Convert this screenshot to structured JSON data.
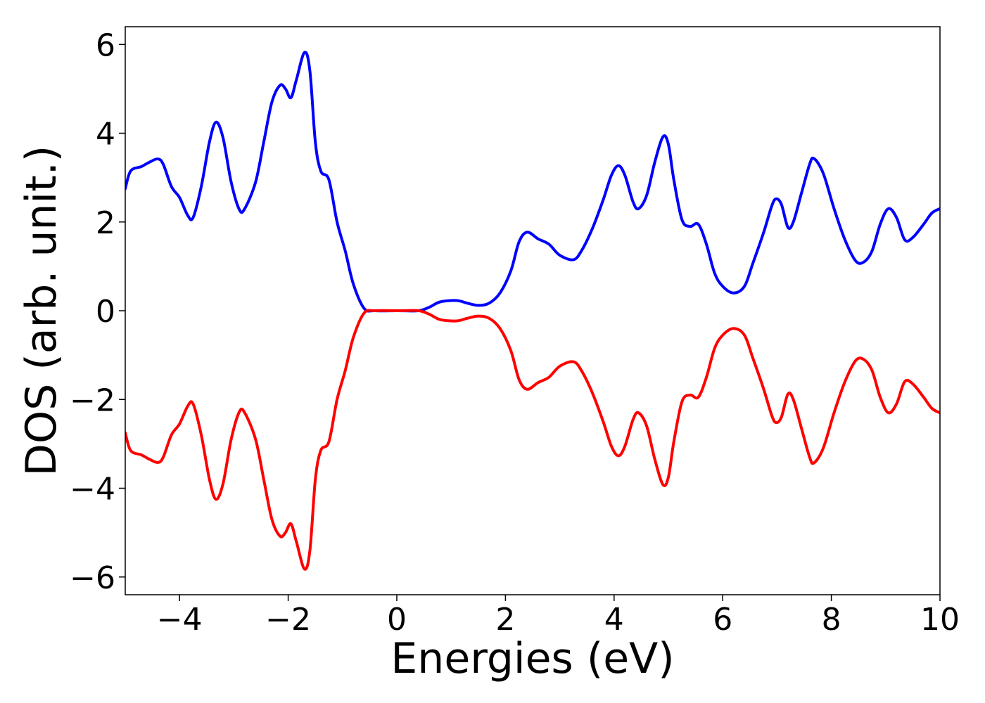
{
  "chart_data": {
    "type": "line",
    "title": "",
    "xlabel": "Energies (eV)",
    "ylabel": "DOS (arb. unit.)",
    "xlim": [
      -5,
      10
    ],
    "ylim": [
      -6.4,
      6.4
    ],
    "xticks": [
      -4,
      -2,
      0,
      2,
      4,
      6,
      8,
      10
    ],
    "xtick_labels": [
      "−4",
      "−2",
      "0",
      "2",
      "4",
      "6",
      "8",
      "10"
    ],
    "yticks": [
      -6,
      -4,
      -2,
      0,
      2,
      4,
      6
    ],
    "ytick_labels": [
      "−6",
      "−4",
      "−2",
      "0",
      "2",
      "4",
      "6"
    ],
    "grid": false,
    "legend": "none",
    "series": [
      {
        "color": "#0000ff",
        "points": [
          [
            -5.0,
            2.75
          ],
          [
            -4.9,
            3.15
          ],
          [
            -4.7,
            3.25
          ],
          [
            -4.55,
            3.35
          ],
          [
            -4.4,
            3.42
          ],
          [
            -4.3,
            3.3
          ],
          [
            -4.15,
            2.8
          ],
          [
            -4.0,
            2.55
          ],
          [
            -3.85,
            2.15
          ],
          [
            -3.75,
            2.1
          ],
          [
            -3.6,
            2.8
          ],
          [
            -3.45,
            3.8
          ],
          [
            -3.33,
            4.25
          ],
          [
            -3.2,
            3.9
          ],
          [
            -3.05,
            2.9
          ],
          [
            -2.9,
            2.28
          ],
          [
            -2.8,
            2.3
          ],
          [
            -2.6,
            2.9
          ],
          [
            -2.45,
            3.8
          ],
          [
            -2.3,
            4.7
          ],
          [
            -2.15,
            5.08
          ],
          [
            -2.05,
            5.0
          ],
          [
            -1.95,
            4.8
          ],
          [
            -1.85,
            5.2
          ],
          [
            -1.7,
            5.82
          ],
          [
            -1.6,
            5.4
          ],
          [
            -1.5,
            3.8
          ],
          [
            -1.4,
            3.15
          ],
          [
            -1.25,
            2.95
          ],
          [
            -1.1,
            2.0
          ],
          [
            -0.95,
            1.35
          ],
          [
            -0.8,
            0.6
          ],
          [
            -0.6,
            0.05
          ],
          [
            -0.4,
            0.0
          ],
          [
            0.0,
            0.0
          ],
          [
            0.4,
            0.0
          ],
          [
            0.6,
            0.08
          ],
          [
            0.8,
            0.2
          ],
          [
            1.1,
            0.23
          ],
          [
            1.3,
            0.17
          ],
          [
            1.5,
            0.12
          ],
          [
            1.7,
            0.17
          ],
          [
            1.9,
            0.4
          ],
          [
            2.1,
            0.9
          ],
          [
            2.25,
            1.55
          ],
          [
            2.4,
            1.77
          ],
          [
            2.6,
            1.62
          ],
          [
            2.8,
            1.5
          ],
          [
            3.0,
            1.25
          ],
          [
            3.25,
            1.15
          ],
          [
            3.4,
            1.35
          ],
          [
            3.6,
            1.85
          ],
          [
            3.8,
            2.5
          ],
          [
            3.95,
            3.05
          ],
          [
            4.08,
            3.27
          ],
          [
            4.2,
            3.05
          ],
          [
            4.35,
            2.45
          ],
          [
            4.45,
            2.3
          ],
          [
            4.6,
            2.6
          ],
          [
            4.75,
            3.35
          ],
          [
            4.9,
            3.92
          ],
          [
            5.0,
            3.75
          ],
          [
            5.1,
            2.95
          ],
          [
            5.25,
            2.05
          ],
          [
            5.4,
            1.9
          ],
          [
            5.55,
            1.95
          ],
          [
            5.7,
            1.5
          ],
          [
            5.85,
            0.85
          ],
          [
            6.0,
            0.55
          ],
          [
            6.2,
            0.4
          ],
          [
            6.4,
            0.55
          ],
          [
            6.55,
            1.05
          ],
          [
            6.75,
            1.75
          ],
          [
            6.9,
            2.35
          ],
          [
            6.98,
            2.52
          ],
          [
            7.08,
            2.4
          ],
          [
            7.2,
            1.88
          ],
          [
            7.3,
            2.0
          ],
          [
            7.45,
            2.65
          ],
          [
            7.6,
            3.3
          ],
          [
            7.68,
            3.43
          ],
          [
            7.85,
            3.1
          ],
          [
            8.05,
            2.3
          ],
          [
            8.25,
            1.6
          ],
          [
            8.45,
            1.12
          ],
          [
            8.6,
            1.1
          ],
          [
            8.75,
            1.35
          ],
          [
            8.9,
            1.95
          ],
          [
            9.05,
            2.3
          ],
          [
            9.2,
            2.1
          ],
          [
            9.35,
            1.6
          ],
          [
            9.5,
            1.65
          ],
          [
            9.7,
            1.95
          ],
          [
            9.85,
            2.2
          ],
          [
            10.0,
            2.3
          ]
        ]
      },
      {
        "color": "#ff0000",
        "points": [
          [
            -5.0,
            -2.75
          ],
          [
            -4.9,
            -3.15
          ],
          [
            -4.7,
            -3.25
          ],
          [
            -4.55,
            -3.35
          ],
          [
            -4.4,
            -3.42
          ],
          [
            -4.3,
            -3.3
          ],
          [
            -4.15,
            -2.8
          ],
          [
            -4.0,
            -2.55
          ],
          [
            -3.85,
            -2.15
          ],
          [
            -3.75,
            -2.1
          ],
          [
            -3.6,
            -2.8
          ],
          [
            -3.45,
            -3.8
          ],
          [
            -3.33,
            -4.25
          ],
          [
            -3.2,
            -3.9
          ],
          [
            -3.05,
            -2.9
          ],
          [
            -2.9,
            -2.28
          ],
          [
            -2.8,
            -2.3
          ],
          [
            -2.6,
            -2.9
          ],
          [
            -2.45,
            -3.8
          ],
          [
            -2.3,
            -4.7
          ],
          [
            -2.15,
            -5.08
          ],
          [
            -2.05,
            -5.0
          ],
          [
            -1.95,
            -4.8
          ],
          [
            -1.85,
            -5.2
          ],
          [
            -1.7,
            -5.82
          ],
          [
            -1.6,
            -5.4
          ],
          [
            -1.5,
            -3.8
          ],
          [
            -1.4,
            -3.15
          ],
          [
            -1.25,
            -2.95
          ],
          [
            -1.1,
            -2.0
          ],
          [
            -0.95,
            -1.35
          ],
          [
            -0.8,
            -0.6
          ],
          [
            -0.6,
            -0.05
          ],
          [
            -0.4,
            0.0
          ],
          [
            0.0,
            0.0
          ],
          [
            0.4,
            0.0
          ],
          [
            0.6,
            -0.08
          ],
          [
            0.8,
            -0.2
          ],
          [
            1.1,
            -0.23
          ],
          [
            1.3,
            -0.17
          ],
          [
            1.5,
            -0.12
          ],
          [
            1.7,
            -0.17
          ],
          [
            1.9,
            -0.4
          ],
          [
            2.1,
            -0.9
          ],
          [
            2.25,
            -1.55
          ],
          [
            2.4,
            -1.77
          ],
          [
            2.6,
            -1.62
          ],
          [
            2.8,
            -1.5
          ],
          [
            3.0,
            -1.25
          ],
          [
            3.25,
            -1.15
          ],
          [
            3.4,
            -1.35
          ],
          [
            3.6,
            -1.85
          ],
          [
            3.8,
            -2.5
          ],
          [
            3.95,
            -3.05
          ],
          [
            4.08,
            -3.27
          ],
          [
            4.2,
            -3.05
          ],
          [
            4.35,
            -2.45
          ],
          [
            4.45,
            -2.3
          ],
          [
            4.6,
            -2.6
          ],
          [
            4.75,
            -3.35
          ],
          [
            4.9,
            -3.92
          ],
          [
            5.0,
            -3.75
          ],
          [
            5.1,
            -2.95
          ],
          [
            5.25,
            -2.05
          ],
          [
            5.4,
            -1.9
          ],
          [
            5.55,
            -1.95
          ],
          [
            5.7,
            -1.5
          ],
          [
            5.85,
            -0.85
          ],
          [
            6.0,
            -0.55
          ],
          [
            6.2,
            -0.4
          ],
          [
            6.4,
            -0.55
          ],
          [
            6.55,
            -1.05
          ],
          [
            6.75,
            -1.75
          ],
          [
            6.9,
            -2.35
          ],
          [
            6.98,
            -2.52
          ],
          [
            7.08,
            -2.4
          ],
          [
            7.2,
            -1.88
          ],
          [
            7.3,
            -2.0
          ],
          [
            7.45,
            -2.65
          ],
          [
            7.6,
            -3.3
          ],
          [
            7.68,
            -3.43
          ],
          [
            7.85,
            -3.1
          ],
          [
            8.05,
            -2.3
          ],
          [
            8.25,
            -1.6
          ],
          [
            8.45,
            -1.12
          ],
          [
            8.6,
            -1.1
          ],
          [
            8.75,
            -1.35
          ],
          [
            8.9,
            -1.95
          ],
          [
            9.05,
            -2.3
          ],
          [
            9.2,
            -2.1
          ],
          [
            9.35,
            -1.6
          ],
          [
            9.5,
            -1.65
          ],
          [
            9.7,
            -1.95
          ],
          [
            9.85,
            -2.2
          ],
          [
            10.0,
            -2.3
          ]
        ]
      }
    ]
  }
}
